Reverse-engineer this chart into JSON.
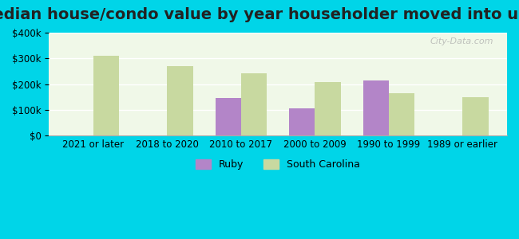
{
  "title": "Median house/condo value by year householder moved into unit",
  "categories": [
    "2021 or later",
    "2018 to 2020",
    "2010 to 2017",
    "2000 to 2009",
    "1990 to 1999",
    "1989 or earlier"
  ],
  "ruby_values": [
    null,
    null,
    145000,
    105000,
    215000,
    null
  ],
  "sc_values": [
    310000,
    270000,
    243000,
    208000,
    165000,
    150000
  ],
  "ruby_color": "#b385c8",
  "sc_color": "#c8d9a0",
  "background_outer": "#00d5e8",
  "background_inner_top": "#f0f8e8",
  "background_inner_bottom": "#dff0d8",
  "ylim": [
    0,
    400000
  ],
  "yticks": [
    0,
    100000,
    200000,
    300000,
    400000
  ],
  "bar_width": 0.35,
  "legend_ruby": "Ruby",
  "legend_sc": "South Carolina",
  "watermark": "City-Data.com",
  "title_fontsize": 14
}
